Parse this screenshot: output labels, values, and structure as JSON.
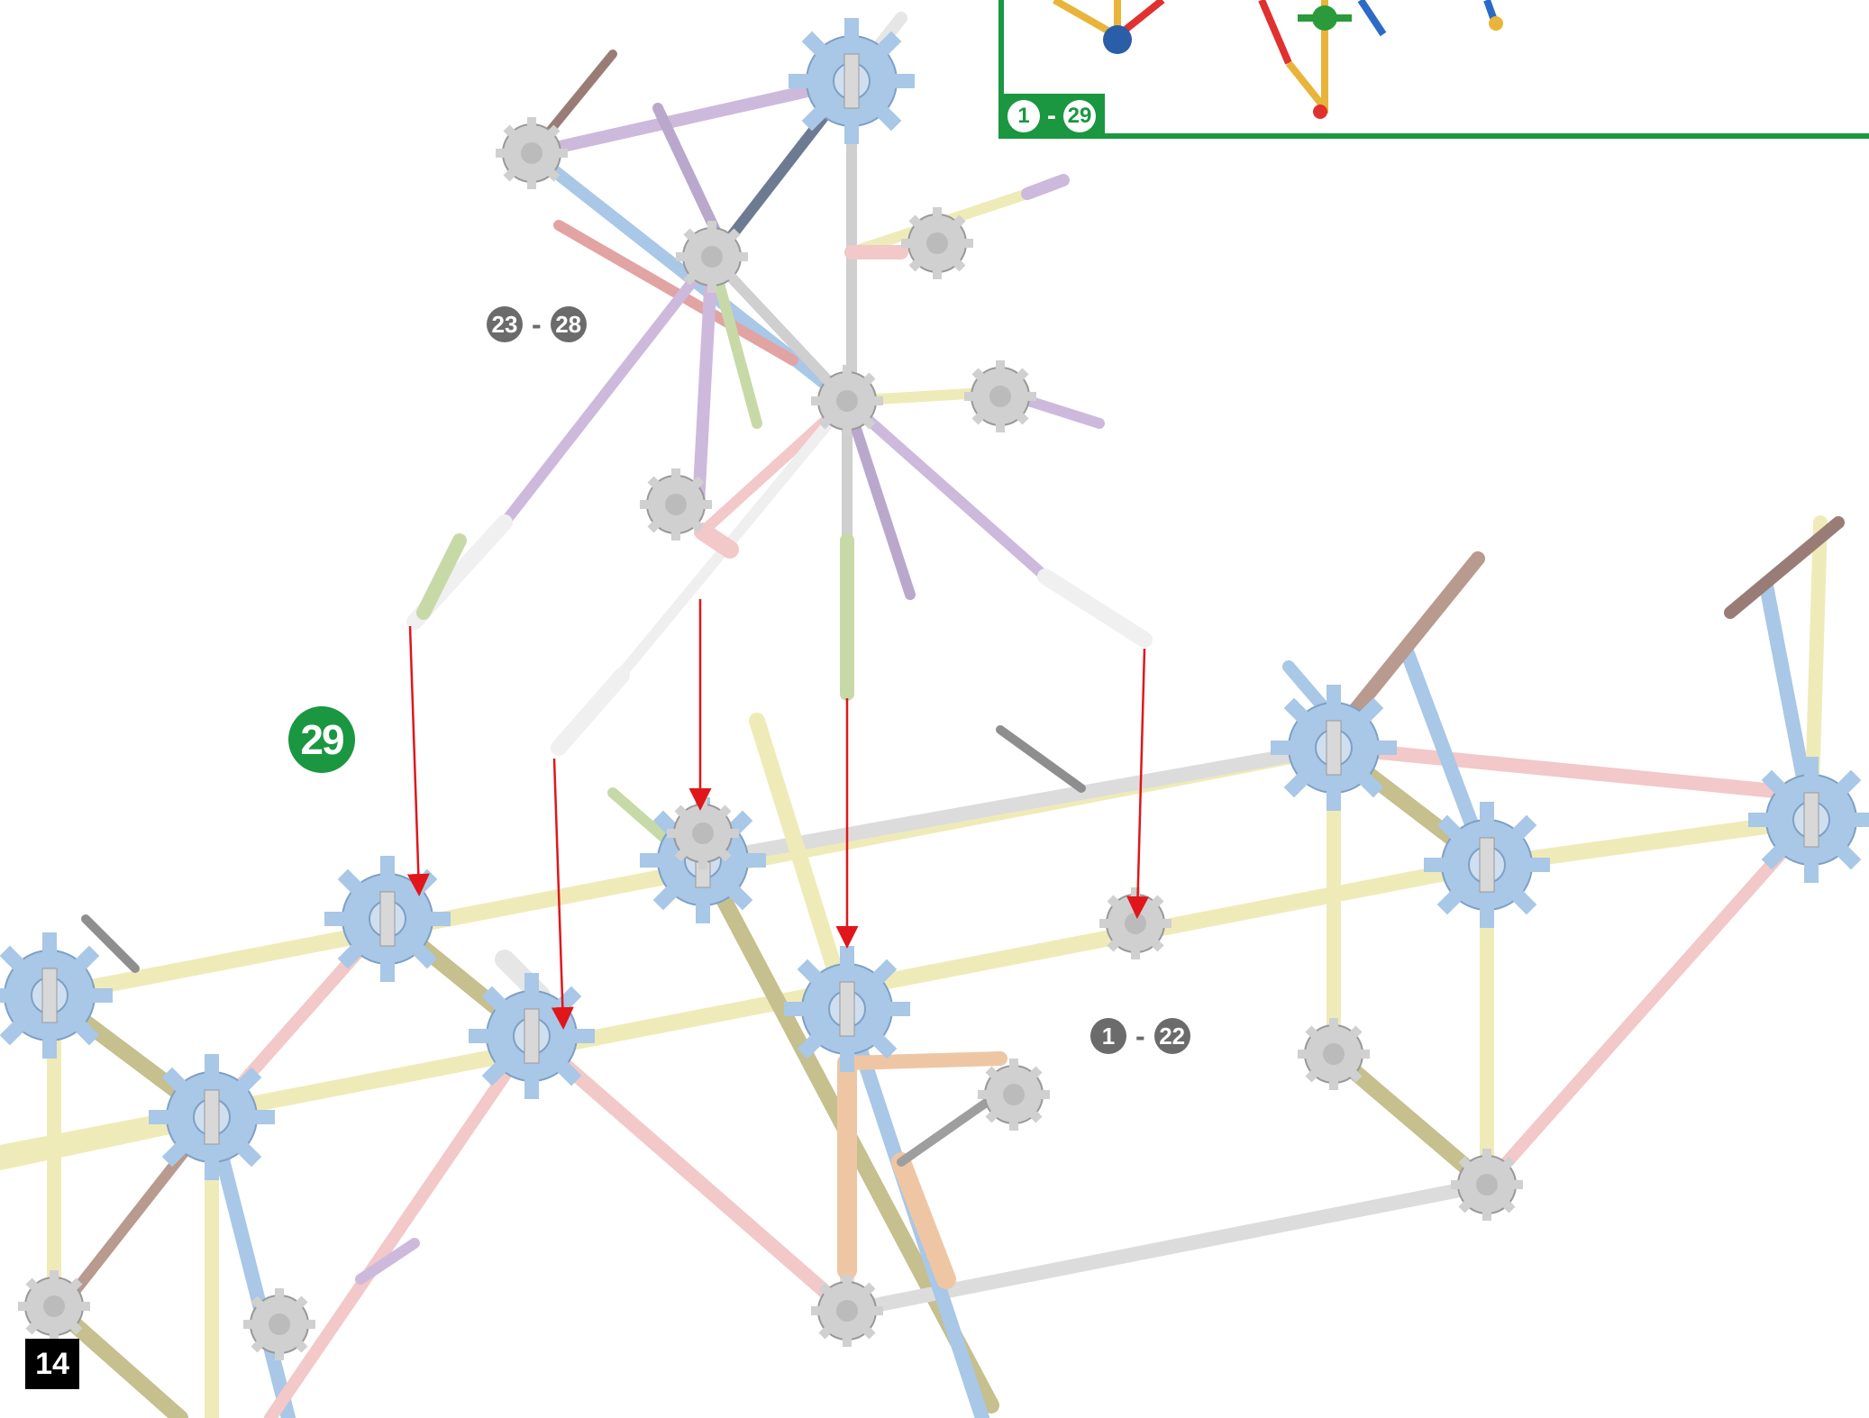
{
  "step": {
    "number": "29"
  },
  "inset": {
    "range_start": "1",
    "range_sep": "-",
    "range_end": "29"
  },
  "callouts": [
    {
      "start": "23",
      "sep": "-",
      "end": "28"
    },
    {
      "start": "1",
      "sep": "-",
      "end": "22"
    }
  ],
  "page_number": "14",
  "colors": {
    "step_green": "#1a9740",
    "arrow_red": "#e0161b",
    "connector_blue": "#a9c7e6",
    "rod_yellow": "#efebb8",
    "rod_pink": "#f2c8c8",
    "rod_purple": "#cdb9dc",
    "rod_gray": "#d5d5d5",
    "rod_olive": "#c6bf8e",
    "rod_tan": "#efc6a4",
    "rod_green": "#c8d9a8",
    "rod_white": "#f5f5f5"
  }
}
